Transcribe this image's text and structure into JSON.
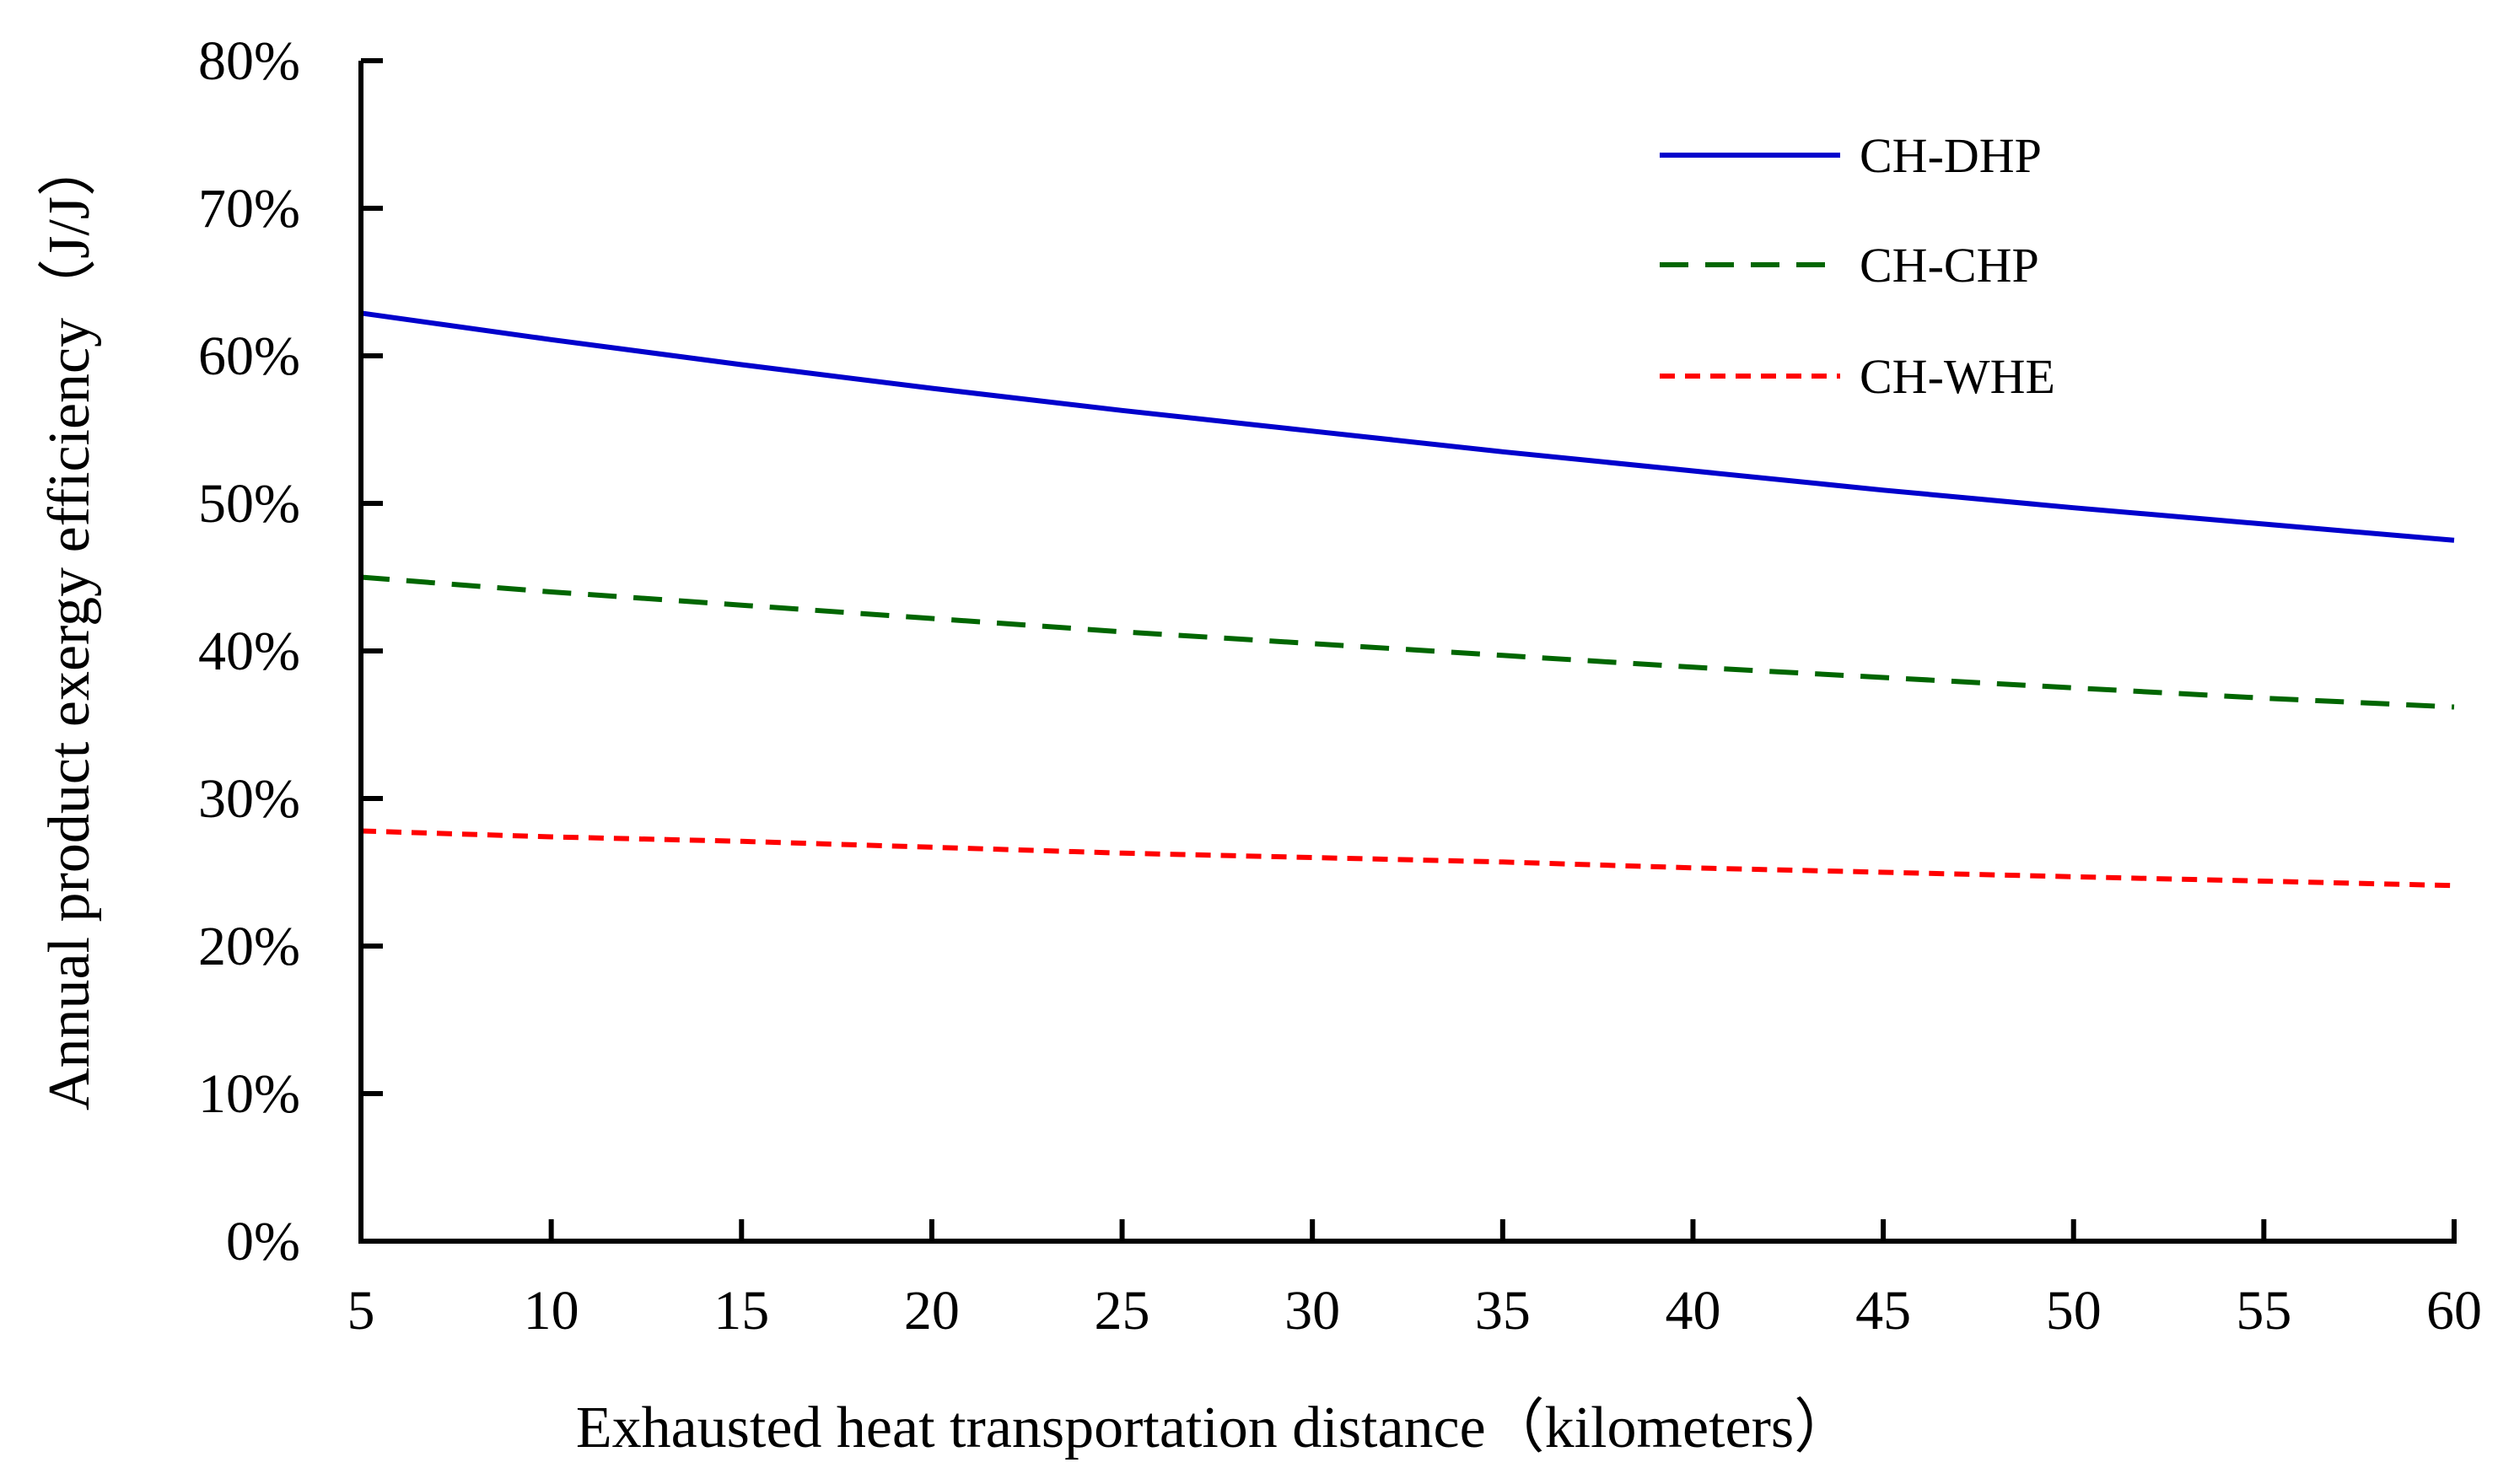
{
  "chart_data": {
    "type": "line",
    "title": "",
    "xlabel": "Exhausted heat transportation distance（kilometers）",
    "ylabel": "Annual product exergy efficiency（J/J）",
    "xlim": [
      5,
      60
    ],
    "ylim": [
      0,
      80
    ],
    "x_ticks": [
      "5",
      "10",
      "15",
      "20",
      "25",
      "30",
      "35",
      "40",
      "45",
      "50",
      "55",
      "60"
    ],
    "y_ticks": [
      "0%",
      "10%",
      "20%",
      "30%",
      "40%",
      "50%",
      "60%",
      "70%",
      "80%"
    ],
    "grid": false,
    "legend_position": "top-right",
    "x": [
      5,
      10,
      15,
      20,
      25,
      30,
      35,
      40,
      45,
      50,
      55,
      60
    ],
    "series": [
      {
        "name": "CH-DHP",
        "color": "#0000cc",
        "style": "solid",
        "values": [
          62.9,
          61.1,
          59.4,
          57.8,
          56.3,
          54.9,
          53.5,
          52.2,
          50.9,
          49.7,
          48.6,
          47.5
        ]
      },
      {
        "name": "CH-CHP",
        "color": "#006600",
        "style": "dashed",
        "values": [
          45.0,
          44.0,
          43.1,
          42.2,
          41.3,
          40.5,
          39.7,
          38.9,
          38.2,
          37.5,
          36.8,
          36.2
        ]
      },
      {
        "name": "CH-WHE",
        "color": "#ff0000",
        "style": "dotted",
        "values": [
          27.8,
          27.4,
          27.1,
          26.7,
          26.3,
          26.0,
          25.7,
          25.3,
          25.0,
          24.7,
          24.4,
          24.1
        ]
      }
    ]
  }
}
